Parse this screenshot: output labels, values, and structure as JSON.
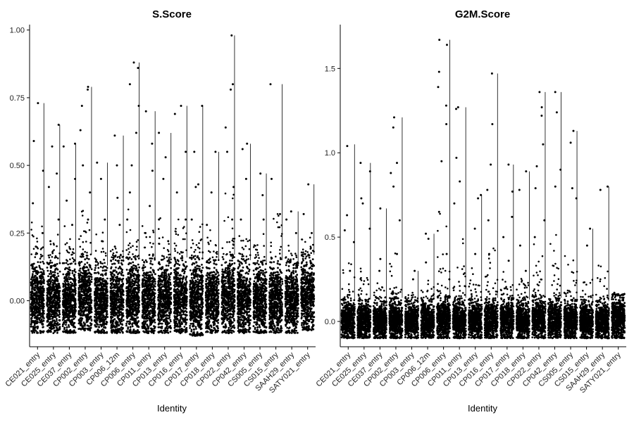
{
  "chart_data": [
    {
      "type": "scatter",
      "title": "S.Score",
      "xlabel": "Identity",
      "ylabel": "",
      "ylim": [
        -0.17,
        1.02
      ],
      "yticks": [
        0.0,
        0.25,
        0.5,
        0.75,
        1.0
      ],
      "ytick_labels": [
        "0.00",
        "0.25",
        "0.50",
        "0.75",
        "1.00"
      ],
      "grid": false,
      "categories": [
        "CE021_entry",
        "CE025_entry",
        "CE037_entry",
        "CP002_entry",
        "CP003_entry",
        "CP006_12m",
        "CP006_entry",
        "CP011_entry",
        "CP013_entry",
        "CP016_entry",
        "CP017_entry",
        "CP018_entry",
        "CP022_entry",
        "CP042_entry",
        "CS005_entry",
        "CS015_entry",
        "SAAH29_entry",
        "SATY021_entry"
      ],
      "series": [
        {
          "max": [
            0.73,
            0.65,
            0.58,
            0.79,
            0.51,
            0.61,
            0.88,
            0.7,
            0.62,
            0.72,
            0.72,
            0.55,
            0.98,
            0.58,
            0.47,
            0.8,
            0.33,
            0.43
          ],
          "body_low": [
            -0.12,
            -0.12,
            -0.12,
            -0.11,
            -0.12,
            -0.12,
            -0.12,
            -0.12,
            -0.12,
            -0.12,
            -0.13,
            -0.12,
            -0.12,
            -0.12,
            -0.12,
            -0.12,
            -0.12,
            -0.11
          ],
          "body_high": [
            0.15,
            0.14,
            0.14,
            0.17,
            0.13,
            0.15,
            0.16,
            0.15,
            0.15,
            0.16,
            0.16,
            0.15,
            0.17,
            0.15,
            0.14,
            0.15,
            0.14,
            0.17
          ],
          "outliers": [
            [
              0.73,
              0.59,
              0.48,
              0.36,
              0.25,
              0.2
            ],
            [
              0.65,
              0.57,
              0.47,
              0.42,
              0.3,
              0.22
            ],
            [
              0.58,
              0.57,
              0.45,
              0.37,
              0.28
            ],
            [
              0.79,
              0.78,
              0.72,
              0.63,
              0.5,
              0.4,
              0.3
            ],
            [
              0.51,
              0.45,
              0.3,
              0.22
            ],
            [
              0.61,
              0.5,
              0.38,
              0.28,
              0.2
            ],
            [
              0.88,
              0.86,
              0.8,
              0.72,
              0.62,
              0.5,
              0.4,
              0.3
            ],
            [
              0.7,
              0.58,
              0.48,
              0.35,
              0.25
            ],
            [
              0.62,
              0.53,
              0.45,
              0.3,
              0.22
            ],
            [
              0.72,
              0.69,
              0.55,
              0.4,
              0.3
            ],
            [
              0.72,
              0.55,
              0.43,
              0.42,
              0.3
            ],
            [
              0.55,
              0.4,
              0.28
            ],
            [
              0.98,
              0.8,
              0.78,
              0.64,
              0.55,
              0.42,
              0.3
            ],
            [
              0.58,
              0.56,
              0.45,
              0.3
            ],
            [
              0.47,
              0.39,
              0.3
            ],
            [
              0.8,
              0.45,
              0.32
            ],
            [
              0.33,
              0.3,
              0.25
            ],
            [
              0.43,
              0.32,
              0.25
            ]
          ]
        }
      ]
    },
    {
      "type": "scatter",
      "title": "G2M.Score",
      "xlabel": "Identity",
      "ylabel": "",
      "ylim": [
        -0.15,
        1.76
      ],
      "yticks": [
        0.0,
        0.5,
        1.0,
        1.5
      ],
      "ytick_labels": [
        "0.0",
        "0.5",
        "1.0",
        "1.5"
      ],
      "grid": false,
      "categories": [
        "CE021_entry",
        "CE025_entry",
        "CE037_entry",
        "CP002_entry",
        "CP003_entry",
        "CP006_12m",
        "CP006_entry",
        "CP011_entry",
        "CP013_entry",
        "CP016_entry",
        "CP017_entry",
        "CP018_entry",
        "CP022_entry",
        "CP042_entry",
        "CS005_entry",
        "CS015_entry",
        "SAAH29_entry",
        "SATY021_entry"
      ],
      "series": [
        {
          "max": [
            1.05,
            0.94,
            0.67,
            1.21,
            0.3,
            0.52,
            1.67,
            1.27,
            0.75,
            1.47,
            0.93,
            0.89,
            1.36,
            1.36,
            1.13,
            0.55,
            0.8,
            0.17
          ],
          "body_low": [
            -0.1,
            -0.1,
            -0.1,
            -0.1,
            -0.1,
            -0.1,
            -0.1,
            -0.1,
            -0.1,
            -0.1,
            -0.1,
            -0.1,
            -0.1,
            -0.1,
            -0.1,
            -0.1,
            -0.1,
            -0.1
          ],
          "body_high": [
            0.13,
            0.13,
            0.12,
            0.14,
            0.12,
            0.13,
            0.15,
            0.14,
            0.13,
            0.14,
            0.14,
            0.13,
            0.15,
            0.14,
            0.13,
            0.12,
            0.12,
            0.16
          ],
          "outliers": [
            [
              1.04,
              0.63,
              0.54,
              0.47,
              0.3
            ],
            [
              0.94,
              0.89,
              0.73,
              0.7,
              0.55
            ],
            [
              0.67,
              0.37,
              0.3
            ],
            [
              1.21,
              1.15,
              0.94,
              0.88,
              0.8,
              0.6,
              0.4
            ],
            [
              0.3,
              0.25
            ],
            [
              0.52,
              0.49,
              0.35
            ],
            [
              1.67,
              1.64,
              1.48,
              1.39,
              1.28,
              1.17,
              0.95,
              0.65,
              0.4,
              0.25
            ],
            [
              1.27,
              1.26,
              0.97,
              0.83,
              0.7
            ],
            [
              0.75,
              0.73,
              0.55,
              0.4
            ],
            [
              1.47,
              1.17,
              0.93,
              0.78,
              0.6,
              0.4
            ],
            [
              0.93,
              0.77,
              0.62,
              0.5,
              0.36
            ],
            [
              0.89,
              0.78,
              0.45,
              0.3
            ],
            [
              1.36,
              1.27,
              1.22,
              1.05,
              0.92,
              0.79,
              0.6,
              0.5
            ],
            [
              1.36,
              1.24,
              0.9,
              0.8
            ],
            [
              1.13,
              1.06,
              0.79,
              0.73
            ],
            [
              0.55,
              0.45
            ],
            [
              0.8,
              0.78
            ],
            [
              0.17,
              0.16
            ]
          ]
        }
      ]
    }
  ]
}
